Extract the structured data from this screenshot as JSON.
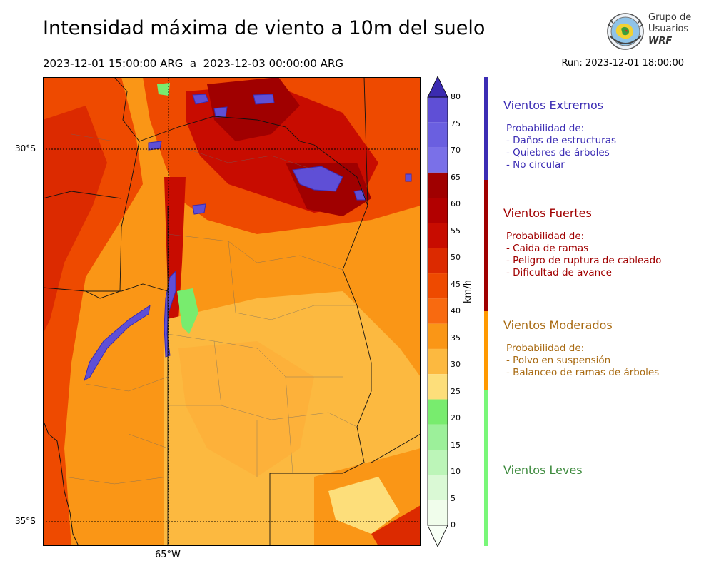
{
  "title": "Intensidad máxima de viento a 10m del suelo",
  "period": "2023-12-01 15:00:00 ARG  a  2023-12-03 00:00:00 ARG",
  "run": "Run: 2023-12-01 18:00:00",
  "logo": {
    "line1": "Grupo de",
    "line2": "Usuarios",
    "line3": "WRF"
  },
  "map": {
    "lat_labels": [
      "30°S",
      "35°S"
    ],
    "lon_labels": [
      "65°W"
    ],
    "colorbar": {
      "unit": "km/h",
      "ticks": [
        "80",
        "75",
        "70",
        "65",
        "60",
        "55",
        "50",
        "45",
        "40",
        "35",
        "30",
        "25",
        "20",
        "15",
        "10",
        "5",
        "0"
      ],
      "colors": [
        "#5f4fd6",
        "#6a5fe0",
        "#7a70e8",
        "#a00000",
        "#b20000",
        "#c80c00",
        "#dc2a00",
        "#ee4a00",
        "#f86a10",
        "#fa9616",
        "#fcb940",
        "#fdde7a",
        "#78ec6e",
        "#9cf09a",
        "#bcf5b8",
        "#daf9d5",
        "#f0fdeb"
      ],
      "top_color": "#3b2bb0"
    }
  },
  "legend": [
    {
      "category": "Vientos Extremos",
      "color": "#3c2db4",
      "lines": [
        "Probabilidad de:",
        "- Daños de estructuras",
        "- Quiebres de árboles",
        "- No circular"
      ]
    },
    {
      "category": "Vientos Fuertes",
      "color": "#a00000",
      "lines": [
        "Probabilidad de:",
        "- Caida de ramas",
        "- Peligro de ruptura de cableado",
        "- Dificultad de avance"
      ]
    },
    {
      "category": "Vientos Moderados",
      "color": "#a86a12",
      "lines": [
        "Probabilidad de:",
        "- Polvo en suspensión",
        "- Balanceo de ramas de árboles"
      ]
    },
    {
      "category": "Vientos Leves",
      "color": "#3d8a3d",
      "lines": []
    }
  ],
  "legend_band_colors": [
    "#3c2db4",
    "#a00000",
    "#ff9900",
    "#79f779"
  ]
}
